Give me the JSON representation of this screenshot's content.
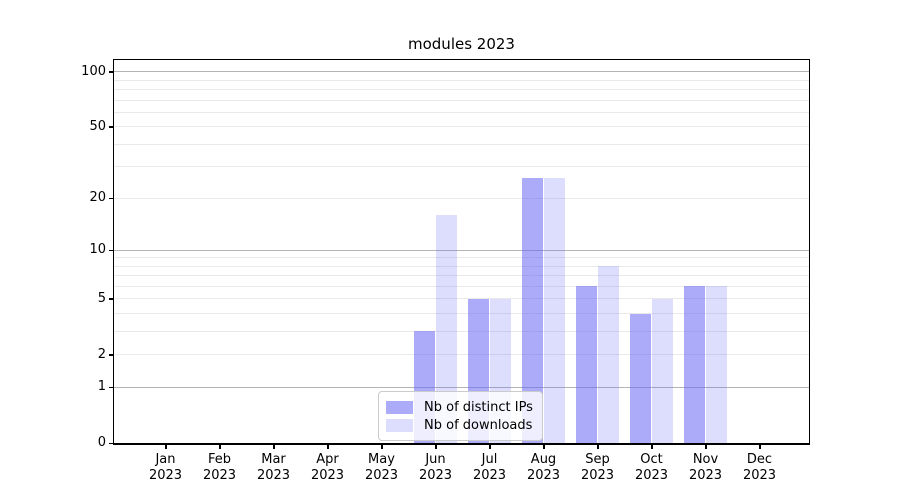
{
  "title": "modules 2023",
  "chart_data": {
    "type": "bar",
    "title": "modules 2023",
    "categories": [
      "Jan",
      "Feb",
      "Mar",
      "Apr",
      "May",
      "Jun",
      "Jul",
      "Aug",
      "Sep",
      "Oct",
      "Nov",
      "Dec"
    ],
    "year_label": "2023",
    "series": [
      {
        "name": "Nb of distinct IPs",
        "values": [
          0,
          0,
          0,
          0,
          0,
          3,
          5,
          26,
          6,
          4,
          6,
          0
        ],
        "color": "rgba(102,102,244,0.55)"
      },
      {
        "name": "Nb of downloads",
        "values": [
          0,
          0,
          0,
          0,
          0,
          16,
          5,
          26,
          8,
          5,
          6,
          0
        ],
        "color": "rgba(102,102,244,0.22)"
      }
    ],
    "y_scale": "log1p",
    "ylim": [
      0,
      115
    ],
    "y_tick_labels": [
      0,
      1,
      2,
      5,
      10,
      20,
      50,
      100
    ],
    "major_gridlines": [
      1,
      10,
      100
    ],
    "minor_gridlines": [
      2,
      3,
      4,
      5,
      6,
      7,
      8,
      9,
      20,
      30,
      40,
      50,
      60,
      70,
      80,
      90
    ],
    "grid": "on",
    "legend_position": "lower center",
    "colors": {
      "bar_base": "#6666f4",
      "major_grid": "#b4b4b4",
      "minor_grid": "#e9e9e9"
    }
  }
}
